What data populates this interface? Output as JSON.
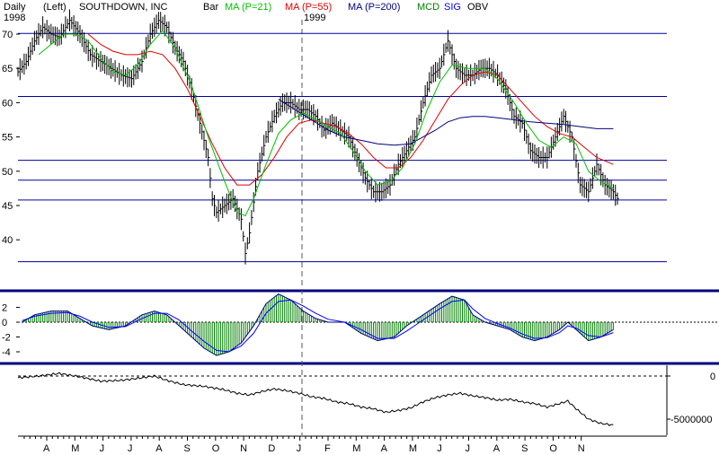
{
  "header": {
    "period": "Daily",
    "scale": "(Left)",
    "symbol": "SOUTHDOWN, INC",
    "bar": "Bar",
    "ma21": "MA (P=21)",
    "ma55": "MA (P=55)",
    "ma200": "MA (P=200)",
    "mcd": "MCD",
    "sig": "SIG",
    "obv": "OBV",
    "year_start": "1998",
    "year_mid": "1999"
  },
  "colors": {
    "ma21": "#00c000",
    "ma55": "#e00000",
    "ma200": "#000080",
    "hlines": "#0000a0",
    "hist": "#008000",
    "mcd_line": "#000080",
    "sig_line": "#0000ff",
    "frame": "#000080"
  },
  "chart_data": [
    {
      "type": "line",
      "name": "price",
      "ylim": [
        35,
        73
      ],
      "yticks": [
        "70",
        "65",
        "60",
        "55",
        "50",
        "45",
        "40"
      ],
      "hlines": [
        70.1,
        60.9,
        51.6,
        48.7,
        45.8,
        36.8
      ],
      "x_labels": [
        "A",
        "M",
        "J",
        "J",
        "A",
        "S",
        "O",
        "N",
        "D",
        "J",
        "F",
        "M",
        "A",
        "M",
        "J",
        "J",
        "A",
        "S",
        "O",
        "N"
      ],
      "price": [
        [
          0,
          64.5
        ],
        [
          4,
          66
        ],
        [
          8,
          69
        ],
        [
          12,
          71
        ],
        [
          16,
          70
        ],
        [
          20,
          69.5
        ],
        [
          25,
          72
        ],
        [
          30,
          70
        ],
        [
          35,
          67
        ],
        [
          40,
          66
        ],
        [
          45,
          65
        ],
        [
          50,
          64
        ],
        [
          55,
          63.5
        ],
        [
          60,
          66
        ],
        [
          64,
          70
        ],
        [
          68,
          72
        ],
        [
          72,
          71
        ],
        [
          76,
          68
        ],
        [
          80,
          66
        ],
        [
          84,
          62
        ],
        [
          88,
          57
        ],
        [
          92,
          52
        ],
        [
          94,
          46
        ],
        [
          96,
          44
        ],
        [
          100,
          45
        ],
        [
          104,
          46
        ],
        [
          108,
          43
        ],
        [
          110,
          38
        ],
        [
          112,
          41
        ],
        [
          116,
          50
        ],
        [
          120,
          55
        ],
        [
          124,
          58
        ],
        [
          128,
          60
        ],
        [
          132,
          60
        ],
        [
          136,
          59
        ],
        [
          140,
          59
        ],
        [
          144,
          58
        ],
        [
          148,
          56
        ],
        [
          152,
          57
        ],
        [
          156,
          56
        ],
        [
          160,
          55
        ],
        [
          164,
          52
        ],
        [
          168,
          49
        ],
        [
          172,
          47
        ],
        [
          176,
          47
        ],
        [
          180,
          48
        ],
        [
          184,
          51
        ],
        [
          188,
          53
        ],
        [
          192,
          55
        ],
        [
          196,
          60
        ],
        [
          200,
          64
        ],
        [
          204,
          65
        ],
        [
          208,
          69
        ],
        [
          212,
          65
        ],
        [
          216,
          64
        ],
        [
          220,
          64
        ],
        [
          224,
          65
        ],
        [
          228,
          65
        ],
        [
          232,
          64
        ],
        [
          236,
          62
        ],
        [
          240,
          58
        ],
        [
          244,
          57
        ],
        [
          248,
          53
        ],
        [
          252,
          52
        ],
        [
          256,
          52
        ],
        [
          260,
          55
        ],
        [
          264,
          58
        ],
        [
          268,
          55
        ],
        [
          272,
          48
        ],
        [
          276,
          47
        ],
        [
          280,
          51
        ],
        [
          284,
          48
        ],
        [
          288,
          47
        ],
        [
          290,
          46
        ]
      ],
      "ma21": [
        [
          10,
          67
        ],
        [
          16,
          68.5
        ],
        [
          22,
          70
        ],
        [
          28,
          70
        ],
        [
          34,
          69
        ],
        [
          40,
          66.5
        ],
        [
          46,
          64.5
        ],
        [
          52,
          64
        ],
        [
          58,
          65.5
        ],
        [
          64,
          68.5
        ],
        [
          70,
          70.5
        ],
        [
          76,
          68
        ],
        [
          84,
          62.5
        ],
        [
          92,
          55
        ],
        [
          100,
          48.5
        ],
        [
          106,
          44
        ],
        [
          110,
          43.5
        ],
        [
          114,
          46
        ],
        [
          120,
          51
        ],
        [
          126,
          55.5
        ],
        [
          132,
          57.5
        ],
        [
          138,
          58.5
        ],
        [
          144,
          57.5
        ],
        [
          150,
          56.5
        ],
        [
          156,
          55.5
        ],
        [
          162,
          53
        ],
        [
          168,
          50
        ],
        [
          174,
          48
        ],
        [
          180,
          48.5
        ],
        [
          186,
          50.5
        ],
        [
          192,
          54
        ],
        [
          198,
          59
        ],
        [
          204,
          63
        ],
        [
          210,
          65.5
        ],
        [
          218,
          65
        ],
        [
          226,
          65
        ],
        [
          232,
          63.5
        ],
        [
          240,
          60
        ],
        [
          246,
          57
        ],
        [
          252,
          54.5
        ],
        [
          258,
          53.5
        ],
        [
          264,
          55
        ],
        [
          270,
          54
        ],
        [
          276,
          50
        ],
        [
          282,
          48.5
        ],
        [
          288,
          47.5
        ]
      ],
      "ma55": [
        [
          34,
          70
        ],
        [
          40,
          68.5
        ],
        [
          46,
          67.5
        ],
        [
          52,
          67
        ],
        [
          58,
          67
        ],
        [
          64,
          67.5
        ],
        [
          70,
          67
        ],
        [
          76,
          65
        ],
        [
          82,
          62
        ],
        [
          88,
          58
        ],
        [
          94,
          54
        ],
        [
          100,
          50.5
        ],
        [
          106,
          48
        ],
        [
          112,
          48
        ],
        [
          118,
          49.5
        ],
        [
          124,
          52
        ],
        [
          130,
          55
        ],
        [
          136,
          57
        ],
        [
          142,
          57.5
        ],
        [
          148,
          57
        ],
        [
          154,
          56.5
        ],
        [
          160,
          55.5
        ],
        [
          166,
          54
        ],
        [
          172,
          52
        ],
        [
          178,
          50.5
        ],
        [
          184,
          50.5
        ],
        [
          190,
          52
        ],
        [
          196,
          54.5
        ],
        [
          202,
          57.5
        ],
        [
          208,
          60.5
        ],
        [
          214,
          62.5
        ],
        [
          220,
          64
        ],
        [
          226,
          64.5
        ],
        [
          232,
          64
        ],
        [
          238,
          62
        ],
        [
          244,
          60
        ],
        [
          250,
          58
        ],
        [
          256,
          56.5
        ],
        [
          262,
          55.5
        ],
        [
          268,
          55
        ],
        [
          274,
          53.5
        ],
        [
          280,
          52
        ],
        [
          288,
          51
        ]
      ],
      "ma200": [
        [
          126,
          60.5
        ],
        [
          134,
          59
        ],
        [
          142,
          57.5
        ],
        [
          150,
          56
        ],
        [
          158,
          55
        ],
        [
          166,
          54.5
        ],
        [
          174,
          54
        ],
        [
          182,
          53.8
        ],
        [
          190,
          54
        ],
        [
          196,
          55
        ],
        [
          202,
          56
        ],
        [
          208,
          57.2
        ],
        [
          214,
          57.8
        ],
        [
          220,
          58
        ],
        [
          226,
          58
        ],
        [
          232,
          57.8
        ],
        [
          240,
          57.5
        ],
        [
          248,
          57.2
        ],
        [
          256,
          57
        ],
        [
          264,
          56.8
        ],
        [
          272,
          56.5
        ],
        [
          280,
          56.2
        ],
        [
          288,
          56.2
        ]
      ]
    },
    {
      "type": "bar",
      "name": "macd",
      "ylim": [
        -5,
        4
      ],
      "yticks": [
        "2",
        "0",
        "-2",
        "-4"
      ],
      "mcd": [
        [
          2,
          0
        ],
        [
          8,
          1
        ],
        [
          16,
          1.5
        ],
        [
          24,
          1.5
        ],
        [
          30,
          0.5
        ],
        [
          36,
          -0.5
        ],
        [
          44,
          -1
        ],
        [
          52,
          -0.5
        ],
        [
          60,
          1
        ],
        [
          66,
          1.5
        ],
        [
          72,
          1
        ],
        [
          78,
          -0.5
        ],
        [
          84,
          -2
        ],
        [
          90,
          -3.5
        ],
        [
          96,
          -4.5
        ],
        [
          102,
          -4
        ],
        [
          108,
          -2.8
        ],
        [
          114,
          -0.5
        ],
        [
          120,
          2.5
        ],
        [
          126,
          3.8
        ],
        [
          132,
          3
        ],
        [
          138,
          1.5
        ],
        [
          144,
          0.5
        ],
        [
          150,
          0
        ],
        [
          158,
          0
        ],
        [
          166,
          -1.5
        ],
        [
          174,
          -2.5
        ],
        [
          182,
          -2
        ],
        [
          188,
          -0.5
        ],
        [
          196,
          1
        ],
        [
          204,
          2.5
        ],
        [
          210,
          3.5
        ],
        [
          216,
          3
        ],
        [
          220,
          1
        ],
        [
          226,
          0
        ],
        [
          232,
          -0.5
        ],
        [
          238,
          -1
        ],
        [
          244,
          -2
        ],
        [
          250,
          -2.5
        ],
        [
          256,
          -2
        ],
        [
          262,
          -1
        ],
        [
          266,
          0
        ],
        [
          270,
          -1
        ],
        [
          276,
          -2.5
        ],
        [
          282,
          -2
        ],
        [
          288,
          -1
        ]
      ],
      "sig": [
        [
          2,
          0.2
        ],
        [
          8,
          0.8
        ],
        [
          16,
          1.2
        ],
        [
          24,
          1.3
        ],
        [
          30,
          0.8
        ],
        [
          36,
          0
        ],
        [
          44,
          -0.7
        ],
        [
          52,
          -0.6
        ],
        [
          60,
          0.5
        ],
        [
          66,
          1.2
        ],
        [
          72,
          1.2
        ],
        [
          78,
          0.3
        ],
        [
          84,
          -1.2
        ],
        [
          90,
          -2.6
        ],
        [
          96,
          -3.8
        ],
        [
          102,
          -4
        ],
        [
          108,
          -3.2
        ],
        [
          114,
          -1.5
        ],
        [
          120,
          1.2
        ],
        [
          126,
          2.8
        ],
        [
          132,
          3
        ],
        [
          138,
          2.2
        ],
        [
          144,
          1.2
        ],
        [
          150,
          0.4
        ],
        [
          158,
          0
        ],
        [
          166,
          -1
        ],
        [
          174,
          -2.2
        ],
        [
          182,
          -2.2
        ],
        [
          188,
          -1.2
        ],
        [
          196,
          0.3
        ],
        [
          204,
          1.8
        ],
        [
          210,
          2.8
        ],
        [
          216,
          3
        ],
        [
          220,
          1.8
        ],
        [
          226,
          0.5
        ],
        [
          232,
          -0.2
        ],
        [
          238,
          -0.8
        ],
        [
          244,
          -1.6
        ],
        [
          250,
          -2.2
        ],
        [
          256,
          -2.1
        ],
        [
          262,
          -1.4
        ],
        [
          266,
          -0.5
        ],
        [
          270,
          -0.8
        ],
        [
          276,
          -1.8
        ],
        [
          282,
          -2
        ],
        [
          288,
          -1.4
        ]
      ]
    },
    {
      "type": "line",
      "name": "obv",
      "ylim": [
        -7000000,
        500000
      ],
      "yticks": [
        "0",
        "-5000000"
      ],
      "obv": [
        [
          0,
          -200000
        ],
        [
          10,
          0
        ],
        [
          20,
          300000
        ],
        [
          30,
          -100000
        ],
        [
          40,
          -600000
        ],
        [
          50,
          -500000
        ],
        [
          60,
          -200000
        ],
        [
          66,
          0
        ],
        [
          72,
          -500000
        ],
        [
          80,
          -1000000
        ],
        [
          90,
          -1200000
        ],
        [
          100,
          -1600000
        ],
        [
          106,
          -2000000
        ],
        [
          112,
          -2200000
        ],
        [
          118,
          -1800000
        ],
        [
          124,
          -1500000
        ],
        [
          130,
          -1700000
        ],
        [
          136,
          -2000000
        ],
        [
          142,
          -2400000
        ],
        [
          148,
          -2600000
        ],
        [
          154,
          -3000000
        ],
        [
          160,
          -3200000
        ],
        [
          166,
          -3600000
        ],
        [
          172,
          -3800000
        ],
        [
          178,
          -4200000
        ],
        [
          184,
          -4000000
        ],
        [
          190,
          -3700000
        ],
        [
          196,
          -3000000
        ],
        [
          202,
          -2500000
        ],
        [
          208,
          -2200000
        ],
        [
          214,
          -2000000
        ],
        [
          220,
          -2300000
        ],
        [
          226,
          -2500000
        ],
        [
          232,
          -2800000
        ],
        [
          238,
          -2700000
        ],
        [
          244,
          -3000000
        ],
        [
          250,
          -3200000
        ],
        [
          256,
          -3600000
        ],
        [
          262,
          -3200000
        ],
        [
          266,
          -2900000
        ],
        [
          270,
          -3800000
        ],
        [
          276,
          -5000000
        ],
        [
          282,
          -5500000
        ],
        [
          288,
          -5700000
        ]
      ]
    }
  ]
}
